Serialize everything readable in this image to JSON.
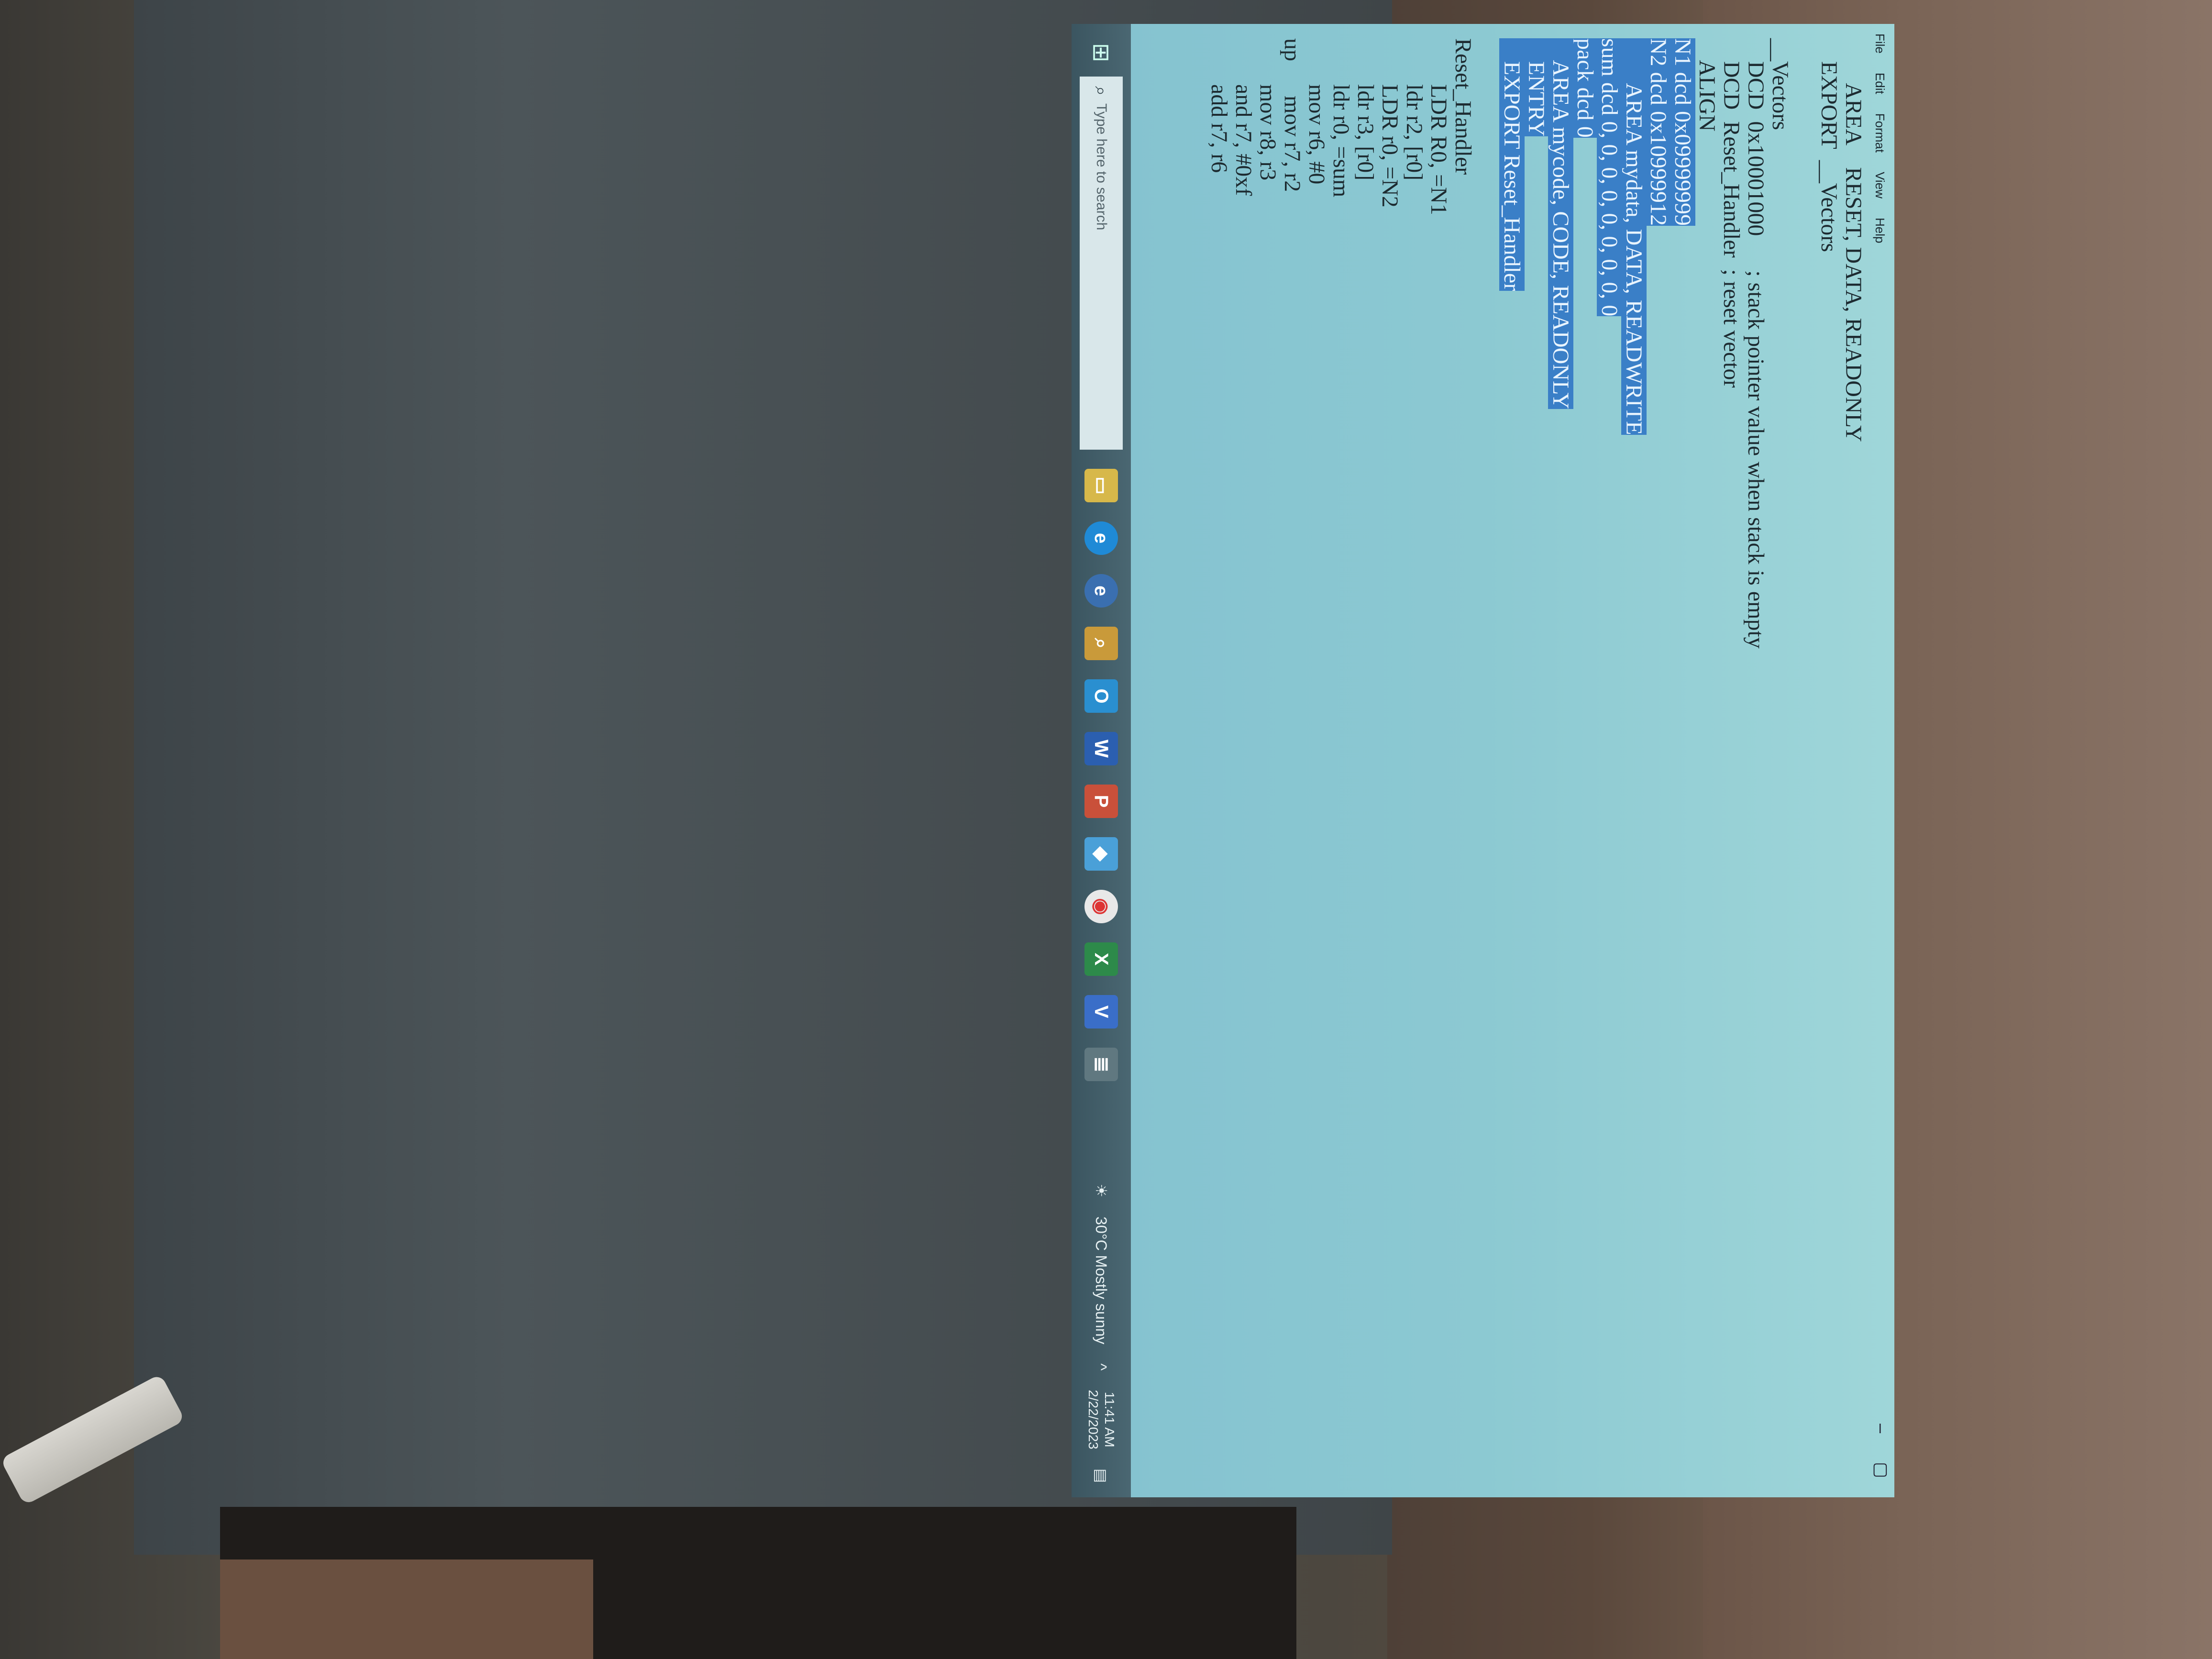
{
  "menu": [
    "File",
    "Edit",
    "Format",
    "View",
    "Help"
  ],
  "window_controls": {
    "minimize": "–",
    "maximize": "▢"
  },
  "code_lines": [
    {
      "text": "        AREA    RESET, DATA, READONLY",
      "hl": false
    },
    {
      "text": "    EXPORT  __Vectors",
      "hl": false
    },
    {
      "text": "",
      "hl": false
    },
    {
      "text": "__Vectors",
      "hl": false
    },
    {
      "text": "    DCD  0x10001000      ; stack pointer value when stack is empty",
      "hl": false
    },
    {
      "text": "    DCD  Reset_Handler  ; reset vector",
      "hl": false
    },
    {
      "text": "    ALIGN",
      "hl": false
    },
    {
      "text": "N1 dcd 0x09999999",
      "hl": true
    },
    {
      "text": "N2 dcd 0x10999912",
      "hl": true
    },
    {
      "text": "        AREA mydata, DATA, READWRITE",
      "hl": true
    },
    {
      "text": "sum dcd 0, 0, 0, 0, 0, 0, 0, 0, 0",
      "hl": true
    },
    {
      "text": "pack dcd 0",
      "hl": true
    },
    {
      "text": "    AREA mycode, CODE, READONLY",
      "hl": true
    },
    {
      "text": "    ENTRY",
      "hl": true
    },
    {
      "text": "    EXPORT Reset_Handler",
      "hl": true
    },
    {
      "text": "",
      "hl": false
    },
    {
      "text": "Reset_Handler",
      "hl": false
    },
    {
      "text": "        LDR R0, =N1",
      "hl": false
    },
    {
      "text": "        ldr r2, [r0]",
      "hl": false
    },
    {
      "text": "        LDR r0, =N2",
      "hl": false
    },
    {
      "text": "        ldr r3, [r0]",
      "hl": false
    },
    {
      "text": "        ldr r0, =sum",
      "hl": false
    },
    {
      "text": "        mov r6, #0",
      "hl": false
    },
    {
      "text": "up      mov r7, r2",
      "hl": false
    },
    {
      "text": "        mov r8, r3",
      "hl": false
    },
    {
      "text": "        and r7, #0xf",
      "hl": false
    },
    {
      "text": "        add r7, r6",
      "hl": false
    }
  ],
  "taskbar": {
    "search_placeholder": "Type here to search",
    "weather": "30°C  Mostly sunny",
    "time": "11:41 AM",
    "date": "2/22/2023"
  },
  "colors": {
    "highlight": "#3a7fc7",
    "screen": "#8cc9d2"
  }
}
